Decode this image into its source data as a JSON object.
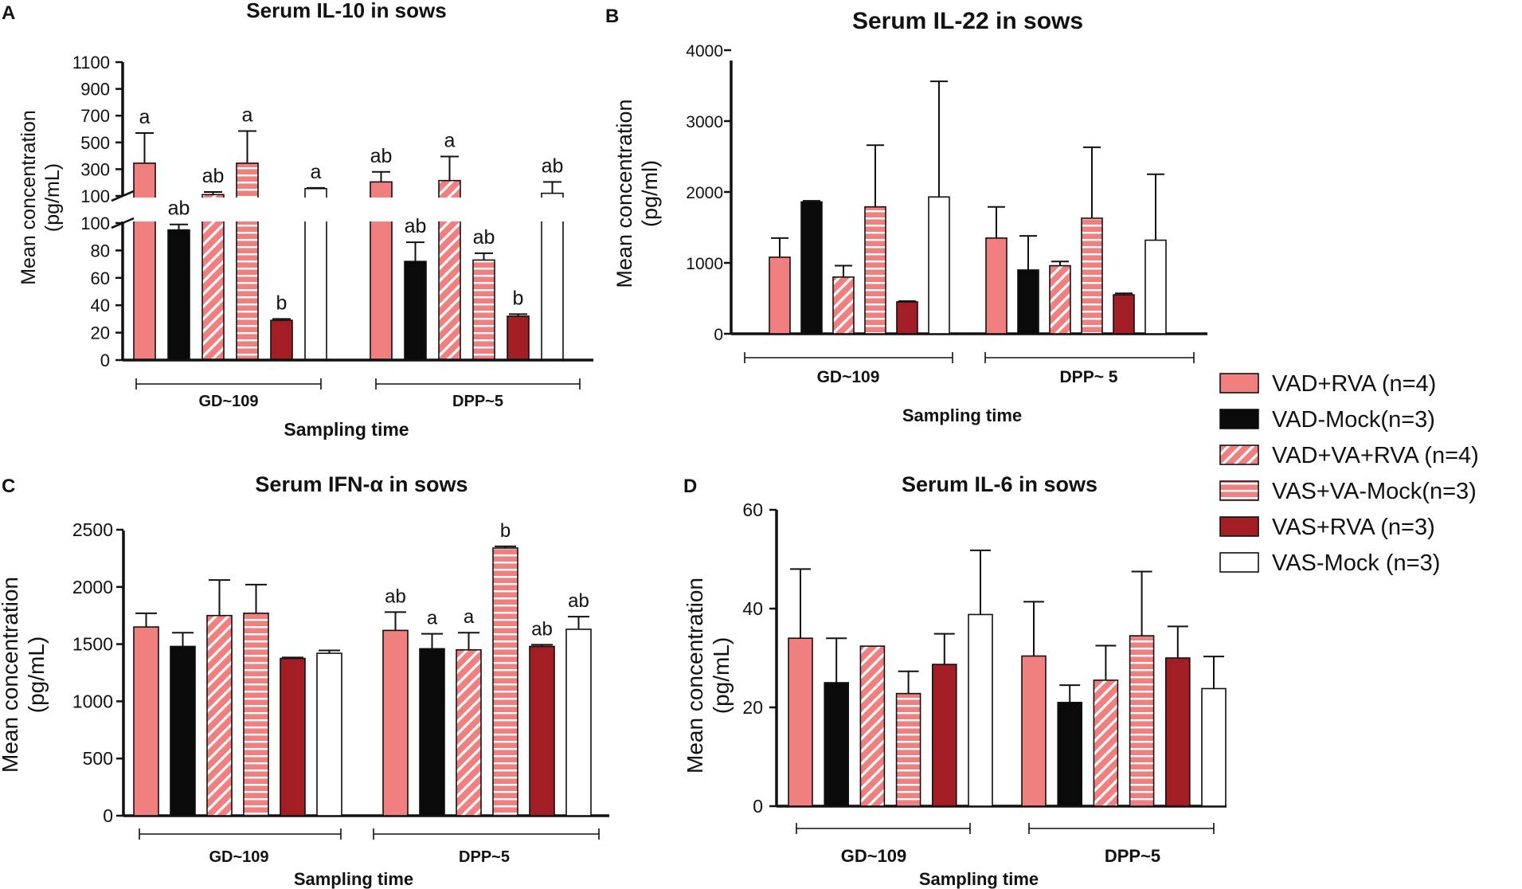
{
  "legend": [
    {
      "label": "VAD+RVA (n=4)",
      "color": "#f08080",
      "pattern": "solid"
    },
    {
      "label": "VAD-Mock(n=3)",
      "color": "#0a0a0a",
      "pattern": "solid"
    },
    {
      "label": "VAD+VA+RVA (n=4)",
      "color": "#f08080",
      "pattern": "diag"
    },
    {
      "label": "VAS+VA-Mock(n=3)",
      "color": "#f08080",
      "pattern": "horiz"
    },
    {
      "label": "VAS+RVA (n=3)",
      "color": "#a31d24",
      "pattern": "solid"
    },
    {
      "label": "VAS-Mock (n=3)",
      "color": "#ffffff",
      "pattern": "solid"
    }
  ],
  "chart_data": [
    {
      "panel": "A",
      "type": "bar",
      "title": "Serum IL-10 in sows",
      "ylabel_line1": "Mean concentration",
      "ylabel_line2": "(pg/mL)",
      "xlabel": "Sampling time",
      "categories": [
        "GD~109",
        "DPP~5"
      ],
      "axis_break": true,
      "lower_ylim": [
        0,
        100
      ],
      "lower_ticks": [
        "0",
        "20",
        "40",
        "60",
        "80",
        "100"
      ],
      "upper_ylim": [
        100,
        1100
      ],
      "upper_ticks": [
        "100",
        "300",
        "500",
        "700",
        "900",
        "1100"
      ],
      "series": [
        {
          "name": "VAD+RVA (n=4)",
          "values": [
            345,
            205
          ],
          "errors": [
            225,
            75
          ],
          "labels": [
            "a",
            "ab"
          ]
        },
        {
          "name": "VAD-Mock(n=3)",
          "values": [
            95,
            72
          ],
          "errors": [
            4,
            14
          ],
          "labels": [
            "ab",
            "ab"
          ]
        },
        {
          "name": "VAD+VA+RVA (n=4)",
          "values": [
            110,
            215
          ],
          "errors": [
            20,
            180
          ],
          "labels": [
            "ab",
            "a"
          ]
        },
        {
          "name": "VAS+VA-Mock(n=3)",
          "values": [
            345,
            73
          ],
          "errors": [
            240,
            5
          ],
          "labels": [
            "a",
            "ab"
          ]
        },
        {
          "name": "VAS+RVA (n=3)",
          "values": [
            29,
            32
          ],
          "errors": [
            1,
            1.5
          ],
          "labels": [
            "b",
            "b"
          ]
        },
        {
          "name": "VAS-Mock (n=3)",
          "values": [
            155,
            120
          ],
          "errors": [
            5,
            85
          ],
          "labels": [
            "a",
            "ab"
          ]
        }
      ]
    },
    {
      "panel": "B",
      "type": "bar",
      "title": "Serum IL-22 in sows",
      "ylabel_line1": "Mean concentration",
      "ylabel_line2": "(pg/ml)",
      "xlabel": "Sampling time",
      "categories": [
        "GD~109",
        "DPP~ 5"
      ],
      "ylim": [
        0,
        4000
      ],
      "ticks": [
        "0",
        "1000",
        "2000",
        "3000",
        "4000"
      ],
      "series": [
        {
          "name": "VAD+RVA (n=4)",
          "values": [
            1080,
            1350
          ],
          "errors": [
            270,
            440
          ]
        },
        {
          "name": "VAD-Mock(n=3)",
          "values": [
            1860,
            900
          ],
          "errors": [
            15,
            480
          ]
        },
        {
          "name": "VAD+VA+RVA (n=4)",
          "values": [
            800,
            960
          ],
          "errors": [
            160,
            60
          ]
        },
        {
          "name": "VAS+VA-Mock(n=3)",
          "values": [
            1790,
            1630
          ],
          "errors": [
            870,
            1000
          ]
        },
        {
          "name": "VAS+RVA (n=3)",
          "values": [
            450,
            550
          ],
          "errors": [
            10,
            20
          ]
        },
        {
          "name": "VAS-Mock (n=3)",
          "values": [
            1930,
            1320
          ],
          "errors": [
            1630,
            930
          ]
        }
      ]
    },
    {
      "panel": "C",
      "type": "bar",
      "title": "Serum IFN-α in sows",
      "ylabel_line1": "Mean concentration",
      "ylabel_line2": "(pg/mL)",
      "xlabel": "Sampling time",
      "categories": [
        "GD~109",
        "DPP~5"
      ],
      "ylim": [
        0,
        2500
      ],
      "ticks": [
        "0",
        "500",
        "1000",
        "1500",
        "2000",
        "2500"
      ],
      "series": [
        {
          "name": "VAD+RVA (n=4)",
          "values": [
            1650,
            1620
          ],
          "errors": [
            120,
            160
          ],
          "labels": [
            "",
            "ab"
          ]
        },
        {
          "name": "VAD-Mock(n=3)",
          "values": [
            1480,
            1460
          ],
          "errors": [
            120,
            130
          ],
          "labels": [
            "",
            "a"
          ]
        },
        {
          "name": "VAD+VA+RVA (n=4)",
          "values": [
            1750,
            1450
          ],
          "errors": [
            310,
            150
          ],
          "labels": [
            "",
            "a"
          ]
        },
        {
          "name": "VAS+VA-Mock(n=3)",
          "values": [
            1770,
            2340
          ],
          "errors": [
            250,
            15
          ],
          "labels": [
            "",
            "b"
          ]
        },
        {
          "name": "VAS+RVA (n=3)",
          "values": [
            1375,
            1480
          ],
          "errors": [
            8,
            15
          ],
          "labels": [
            "",
            "ab"
          ]
        },
        {
          "name": "VAS-Mock (n=3)",
          "values": [
            1420,
            1630
          ],
          "errors": [
            25,
            110
          ],
          "labels": [
            "",
            "ab"
          ]
        }
      ]
    },
    {
      "panel": "D",
      "type": "bar",
      "title": "Serum IL-6 in sows",
      "ylabel_line1": "Mean concentration",
      "ylabel_line2": "(pg/mL)",
      "xlabel": "Sampling time",
      "categories": [
        "GD~109",
        "DPP~5"
      ],
      "ylim": [
        0,
        60
      ],
      "ticks": [
        "0",
        "20",
        "40",
        "60"
      ],
      "series": [
        {
          "name": "VAD+RVA (n=4)",
          "values": [
            34,
            30.4
          ],
          "errors": [
            14,
            11
          ]
        },
        {
          "name": "VAD-Mock(n=3)",
          "values": [
            25,
            21
          ],
          "errors": [
            9,
            3.5
          ]
        },
        {
          "name": "VAD+VA+RVA (n=4)",
          "values": [
            32.4,
            25.5
          ],
          "errors": [
            0,
            7
          ]
        },
        {
          "name": "VAS+VA-Mock(n=3)",
          "values": [
            22.8,
            34.5
          ],
          "errors": [
            4.5,
            13
          ]
        },
        {
          "name": "VAS+RVA (n=3)",
          "values": [
            28.7,
            30
          ],
          "errors": [
            6.2,
            6.4
          ]
        },
        {
          "name": "VAS-Mock (n=3)",
          "values": [
            38.8,
            23.8
          ],
          "errors": [
            13,
            6.5
          ]
        }
      ]
    }
  ]
}
